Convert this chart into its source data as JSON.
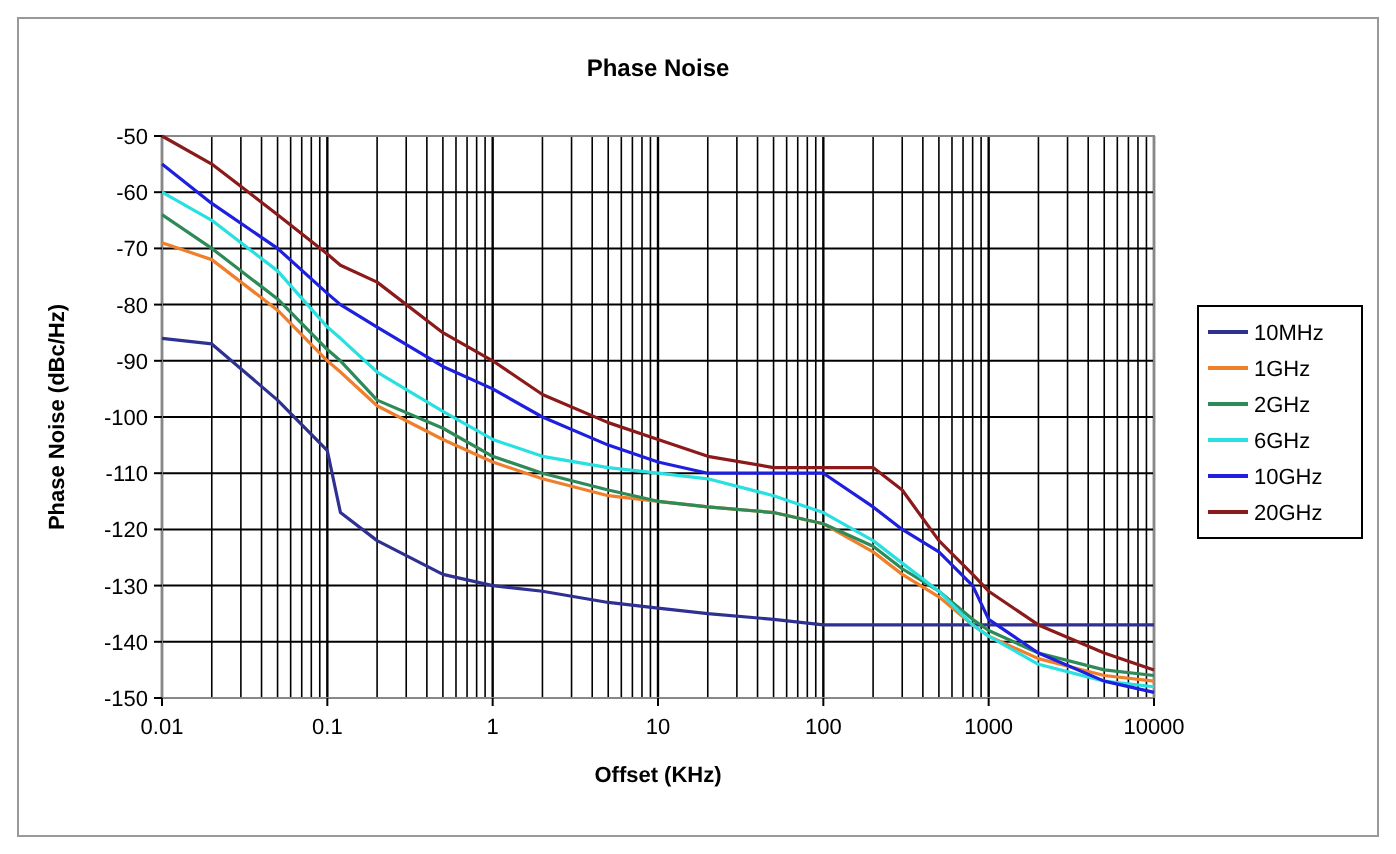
{
  "chart_data": {
    "type": "line",
    "title": "Phase Noise",
    "xlabel": "Offset (KHz)",
    "ylabel": "Phase Noise (dBc/Hz)",
    "log": "x",
    "grid": true,
    "legend": "right",
    "line_style": "solid",
    "x": [
      0.01,
      0.02,
      0.05,
      0.1,
      0.12,
      0.2,
      0.5,
      1,
      2,
      5,
      10,
      20,
      50,
      100,
      200,
      300,
      500,
      800,
      1000,
      2000,
      5000,
      10000
    ],
    "xlim": [
      0.01,
      10000
    ],
    "xticks": [
      0.01,
      0.1,
      1,
      10,
      100,
      1000,
      10000
    ],
    "ylim": [
      -150,
      -50
    ],
    "yticks": [
      -150,
      -140,
      -130,
      -120,
      -110,
      -100,
      -90,
      -80,
      -70,
      -60,
      -50
    ],
    "series": [
      {
        "name": "10MHz",
        "color": "#2e3192",
        "values": [
          -86,
          -87,
          -97,
          -106,
          -117,
          -122,
          -128,
          -130,
          -131,
          -133,
          -134,
          -135,
          -136,
          -137,
          -137,
          -137,
          -137,
          -137,
          -137,
          -137,
          -137,
          -137
        ]
      },
      {
        "name": "1GHz",
        "color": "#f07f2c",
        "values": [
          -69,
          -72,
          -81,
          -90,
          -92,
          -98,
          -104,
          -108,
          -111,
          -114,
          -115,
          -116,
          -117,
          -119,
          -124,
          -128,
          -132,
          -137,
          -139,
          -143,
          -146,
          -147
        ]
      },
      {
        "name": "2GHz",
        "color": "#2e8b57",
        "values": [
          -64,
          -70,
          -79,
          -88,
          -90,
          -97,
          -102,
          -107,
          -110,
          -113,
          -115,
          -116,
          -117,
          -119,
          -123,
          -127,
          -131,
          -136,
          -138,
          -142,
          -145,
          -146
        ]
      },
      {
        "name": "6GHz",
        "color": "#28e0e0",
        "values": [
          -60,
          -65,
          -74,
          -84,
          -86,
          -92,
          -99,
          -104,
          -107,
          -109,
          -110,
          -111,
          -114,
          -117,
          -122,
          -126,
          -131,
          -137,
          -139,
          -144,
          -147,
          -148
        ]
      },
      {
        "name": "10GHz",
        "color": "#1f1fe0",
        "values": [
          -55,
          -62,
          -70,
          -78,
          -80,
          -84,
          -91,
          -95,
          -100,
          -105,
          -108,
          -110,
          -110,
          -110,
          -116,
          -120,
          -124,
          -130,
          -136,
          -142,
          -147,
          -149
        ]
      },
      {
        "name": "20GHz",
        "color": "#8b1a1a",
        "values": [
          -50,
          -55,
          -64,
          -71,
          -73,
          -76,
          -85,
          -90,
          -96,
          -101,
          -104,
          -107,
          -109,
          -109,
          -109,
          -113,
          -122,
          -128,
          -131,
          -137,
          -142,
          -145
        ]
      }
    ]
  }
}
